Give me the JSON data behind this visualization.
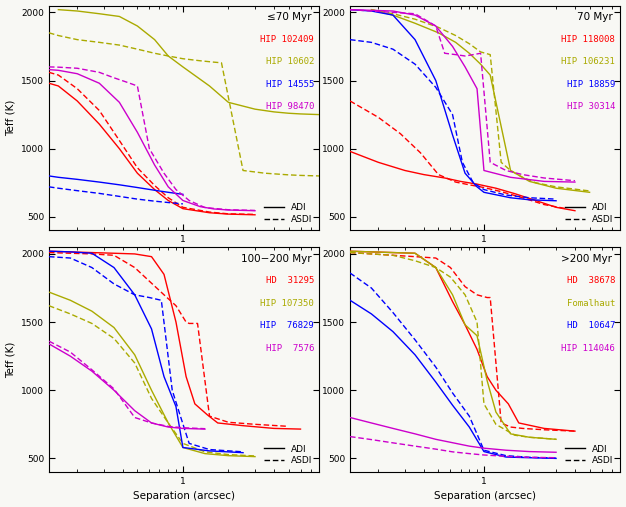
{
  "panels": [
    {
      "title": "≤70 Myr",
      "xlim": [
        0.13,
        8.0
      ],
      "ylim": [
        400,
        2050
      ],
      "yticks": [
        500,
        1000,
        1500,
        2000
      ],
      "series": [
        {
          "label": "HIP 102409",
          "color": "#ff0000",
          "adi_x": [
            0.13,
            0.15,
            0.2,
            0.28,
            0.38,
            0.5,
            0.65,
            0.8,
            1.0,
            1.5,
            2.0,
            3.0
          ],
          "adi_y": [
            1480,
            1460,
            1350,
            1180,
            1000,
            820,
            700,
            620,
            560,
            530,
            520,
            515
          ],
          "asdi_x": [
            0.13,
            0.15,
            0.2,
            0.28,
            0.38,
            0.5,
            0.65,
            0.8,
            1.0,
            1.5,
            2.0,
            3.0
          ],
          "asdi_y": [
            1560,
            1540,
            1440,
            1280,
            1060,
            860,
            730,
            640,
            570,
            535,
            522,
            518
          ]
        },
        {
          "label": "HIP 10602",
          "color": "#aaaa00",
          "adi_x": [
            0.15,
            0.2,
            0.28,
            0.38,
            0.5,
            0.65,
            0.8,
            1.0,
            1.5,
            2.0,
            3.0,
            4.0,
            5.0,
            6.0,
            8.0
          ],
          "adi_y": [
            2020,
            2010,
            1990,
            1970,
            1900,
            1800,
            1680,
            1600,
            1460,
            1340,
            1290,
            1270,
            1260,
            1255,
            1250
          ],
          "asdi_x": [
            0.13,
            0.15,
            0.2,
            0.28,
            0.38,
            0.5,
            0.65,
            0.8,
            1.0,
            1.3,
            1.6,
            1.8,
            2.5,
            3.5,
            5.0,
            6.0,
            8.0
          ],
          "asdi_y": [
            1850,
            1830,
            1800,
            1780,
            1760,
            1730,
            1700,
            1680,
            1660,
            1645,
            1635,
            1630,
            840,
            820,
            808,
            804,
            800
          ]
        },
        {
          "label": "HIP 14555",
          "color": "#0000ff",
          "adi_x": [
            0.13,
            0.15,
            0.2,
            0.28,
            0.38,
            0.5,
            0.65,
            0.8,
            1.0
          ],
          "adi_y": [
            800,
            790,
            775,
            755,
            735,
            715,
            695,
            680,
            665
          ],
          "asdi_x": [
            0.13,
            0.15,
            0.2,
            0.28,
            0.38,
            0.5,
            0.65,
            0.8,
            1.0
          ],
          "asdi_y": [
            720,
            710,
            692,
            672,
            650,
            630,
            615,
            605,
            595
          ]
        },
        {
          "label": "HIP 98470",
          "color": "#cc00cc",
          "adi_x": [
            0.13,
            0.15,
            0.2,
            0.28,
            0.38,
            0.5,
            0.65,
            0.8,
            1.0,
            1.3,
            1.6,
            2.0,
            3.0
          ],
          "adi_y": [
            1580,
            1575,
            1550,
            1480,
            1340,
            1120,
            880,
            720,
            620,
            575,
            558,
            550,
            545
          ],
          "asdi_x": [
            0.13,
            0.15,
            0.2,
            0.28,
            0.35,
            0.42,
            0.5,
            0.6,
            0.75,
            0.9,
            1.1,
            1.4,
            2.0,
            3.0
          ],
          "asdi_y": [
            1600,
            1598,
            1590,
            1560,
            1520,
            1490,
            1460,
            1000,
            820,
            700,
            620,
            568,
            552,
            547
          ]
        }
      ]
    },
    {
      "title": "70 Myr",
      "xlim": [
        0.13,
        8.0
      ],
      "ylim": [
        400,
        2050
      ],
      "yticks": [
        500,
        1000,
        1500,
        2000
      ],
      "series": [
        {
          "label": "HIP 118008",
          "color": "#ff0000",
          "adi_x": [
            0.13,
            0.2,
            0.3,
            0.4,
            0.55,
            0.7,
            0.9,
            1.2,
            1.6,
            2.2,
            3.0,
            4.0
          ],
          "adi_y": [
            980,
            900,
            840,
            810,
            785,
            760,
            740,
            710,
            670,
            620,
            570,
            545
          ],
          "asdi_x": [
            0.13,
            0.2,
            0.28,
            0.38,
            0.5,
            0.65,
            0.8,
            1.0,
            1.3,
            1.8,
            2.5,
            3.5
          ],
          "asdi_y": [
            1350,
            1230,
            1110,
            970,
            810,
            755,
            735,
            715,
            685,
            640,
            590,
            560
          ]
        },
        {
          "label": "HIP 106231",
          "color": "#aaaa00",
          "adi_x": [
            0.18,
            0.25,
            0.35,
            0.5,
            0.65,
            0.8,
            0.95,
            1.1,
            1.5,
            2.0,
            3.0,
            5.0
          ],
          "adi_y": [
            2020,
            1980,
            1920,
            1850,
            1780,
            1700,
            1620,
            1540,
            840,
            760,
            710,
            680
          ],
          "asdi_x": [
            0.18,
            0.25,
            0.35,
            0.5,
            0.65,
            0.8,
            0.95,
            1.1,
            1.3,
            1.5,
            1.8,
            2.2,
            3.0,
            5.0
          ],
          "asdi_y": [
            2020,
            1990,
            1950,
            1890,
            1830,
            1770,
            1710,
            1690,
            900,
            840,
            790,
            750,
            720,
            690
          ]
        },
        {
          "label": "HIP 18859",
          "color": "#0000ff",
          "adi_x": [
            0.13,
            0.18,
            0.25,
            0.35,
            0.48,
            0.62,
            0.75,
            0.9,
            1.0,
            1.5,
            2.0,
            3.0
          ],
          "adi_y": [
            2020,
            2010,
            1980,
            1800,
            1500,
            1100,
            820,
            720,
            680,
            640,
            625,
            618
          ],
          "asdi_x": [
            0.13,
            0.18,
            0.25,
            0.35,
            0.48,
            0.62,
            0.72,
            0.85,
            1.0,
            1.4,
            2.0,
            3.0
          ],
          "asdi_y": [
            1800,
            1780,
            1730,
            1620,
            1450,
            1250,
            900,
            750,
            700,
            660,
            640,
            630
          ]
        },
        {
          "label": "HIP 30314",
          "color": "#cc00cc",
          "adi_x": [
            0.13,
            0.18,
            0.25,
            0.35,
            0.48,
            0.62,
            0.75,
            0.9,
            1.0,
            1.5,
            2.5,
            4.0
          ],
          "adi_y": [
            2020,
            2015,
            2010,
            1980,
            1900,
            1750,
            1600,
            1440,
            840,
            790,
            760,
            755
          ],
          "asdi_x": [
            0.13,
            0.18,
            0.25,
            0.35,
            0.48,
            0.55,
            0.65,
            0.75,
            0.85,
            0.95,
            1.1,
            1.4,
            1.8,
            2.5,
            4.0
          ],
          "asdi_y": [
            2020,
            2010,
            2000,
            1990,
            1900,
            1700,
            1690,
            1680,
            1690,
            1700,
            900,
            840,
            810,
            785,
            765
          ]
        }
      ]
    },
    {
      "title": "100−200 Myr",
      "xlim": [
        0.13,
        8.0
      ],
      "ylim": [
        400,
        2050
      ],
      "yticks": [
        500,
        1000,
        1500,
        2000
      ],
      "series": [
        {
          "label": "HD  31295",
          "color": "#ff0000",
          "adi_x": [
            0.13,
            0.18,
            0.25,
            0.35,
            0.48,
            0.62,
            0.75,
            0.9,
            1.05,
            1.2,
            1.45,
            1.7,
            2.5,
            4.0,
            6.0
          ],
          "adi_y": [
            2020,
            2015,
            2010,
            2005,
            2000,
            1980,
            1850,
            1500,
            1100,
            900,
            820,
            760,
            740,
            720,
            715
          ],
          "asdi_x": [
            0.13,
            0.18,
            0.25,
            0.35,
            0.48,
            0.6,
            0.75,
            0.9,
            1.05,
            1.1,
            1.25,
            1.5,
            2.0,
            3.0,
            5.0
          ],
          "asdi_y": [
            2010,
            2005,
            2000,
            1990,
            1900,
            1800,
            1700,
            1620,
            1500,
            1490,
            1490,
            810,
            765,
            750,
            735
          ]
        },
        {
          "label": "HIP 107350",
          "color": "#aaaa00",
          "adi_x": [
            0.13,
            0.18,
            0.25,
            0.35,
            0.48,
            0.62,
            0.8,
            1.0,
            1.4,
            2.0,
            3.0
          ],
          "adi_y": [
            1720,
            1660,
            1580,
            1460,
            1260,
            1000,
            760,
            580,
            535,
            520,
            513
          ],
          "asdi_x": [
            0.13,
            0.18,
            0.25,
            0.35,
            0.48,
            0.62,
            0.8,
            1.0,
            1.4,
            2.0,
            3.0
          ],
          "asdi_y": [
            1620,
            1560,
            1490,
            1380,
            1200,
            940,
            760,
            610,
            548,
            528,
            518
          ]
        },
        {
          "label": "HIP  76829",
          "color": "#0000ff",
          "adi_x": [
            0.13,
            0.18,
            0.25,
            0.35,
            0.48,
            0.62,
            0.75,
            0.9,
            1.0,
            1.5,
            2.5
          ],
          "adi_y": [
            2020,
            2015,
            2005,
            1900,
            1700,
            1450,
            1100,
            880,
            580,
            555,
            542
          ],
          "asdi_x": [
            0.13,
            0.18,
            0.25,
            0.35,
            0.48,
            0.6,
            0.72,
            0.85,
            0.95,
            1.1,
            1.5,
            2.5
          ],
          "asdi_y": [
            1980,
            1970,
            1900,
            1780,
            1700,
            1680,
            1660,
            1000,
            830,
            610,
            565,
            548
          ]
        },
        {
          "label": "HIP  7576",
          "color": "#cc00cc",
          "adi_x": [
            0.13,
            0.18,
            0.25,
            0.35,
            0.48,
            0.62,
            0.8,
            1.0,
            1.4
          ],
          "adi_y": [
            1340,
            1250,
            1140,
            1000,
            850,
            760,
            730,
            720,
            715
          ],
          "asdi_x": [
            0.13,
            0.18,
            0.25,
            0.35,
            0.48,
            0.62,
            0.8,
            1.0,
            1.4
          ],
          "asdi_y": [
            1360,
            1280,
            1150,
            1010,
            800,
            760,
            735,
            725,
            718
          ]
        }
      ]
    },
    {
      "title": ">200 Myr",
      "xlim": [
        0.13,
        8.0
      ],
      "ylim": [
        400,
        2050
      ],
      "yticks": [
        500,
        1000,
        1500,
        2000
      ],
      "series": [
        {
          "label": "HD  38678",
          "color": "#ff0000",
          "adi_x": [
            0.13,
            0.18,
            0.25,
            0.35,
            0.48,
            0.62,
            0.75,
            0.9,
            1.05,
            1.2,
            1.45,
            1.7,
            2.5,
            4.0
          ],
          "adi_y": [
            2020,
            2015,
            2010,
            2005,
            1900,
            1650,
            1480,
            1300,
            1100,
            1000,
            900,
            760,
            720,
            700
          ],
          "asdi_x": [
            0.13,
            0.18,
            0.25,
            0.35,
            0.48,
            0.6,
            0.75,
            0.9,
            1.05,
            1.1,
            1.3,
            1.5,
            1.8,
            2.5,
            4.0
          ],
          "asdi_y": [
            2010,
            2000,
            1990,
            1980,
            1970,
            1900,
            1760,
            1700,
            1680,
            1680,
            760,
            730,
            720,
            710,
            700
          ]
        },
        {
          "label": "Fomalhaut",
          "color": "#aaaa00",
          "adi_x": [
            0.13,
            0.18,
            0.25,
            0.35,
            0.48,
            0.62,
            0.75,
            0.9,
            1.05,
            1.2,
            1.5,
            2.0,
            3.0
          ],
          "adi_y": [
            2020,
            2015,
            2010,
            2005,
            1900,
            1700,
            1480,
            1400,
            1070,
            840,
            680,
            655,
            640
          ],
          "asdi_x": [
            0.13,
            0.18,
            0.25,
            0.35,
            0.48,
            0.6,
            0.75,
            0.9,
            1.0,
            1.2,
            1.6,
            2.0,
            3.0
          ],
          "asdi_y": [
            2010,
            2000,
            1990,
            1950,
            1900,
            1830,
            1700,
            1500,
            900,
            750,
            670,
            655,
            640
          ]
        },
        {
          "label": "HD  10647",
          "color": "#0000ff",
          "adi_x": [
            0.13,
            0.18,
            0.25,
            0.35,
            0.48,
            0.62,
            0.8,
            1.0,
            1.4,
            2.0,
            3.0
          ],
          "adi_y": [
            1660,
            1560,
            1430,
            1260,
            1060,
            890,
            730,
            550,
            510,
            505,
            500
          ],
          "asdi_x": [
            0.13,
            0.18,
            0.25,
            0.35,
            0.48,
            0.62,
            0.8,
            1.0,
            1.4,
            2.0,
            3.0
          ],
          "asdi_y": [
            1860,
            1750,
            1570,
            1370,
            1170,
            980,
            810,
            560,
            520,
            508,
            502
          ]
        },
        {
          "label": "HIP 114046",
          "color": "#cc00cc",
          "adi_x": [
            0.13,
            0.18,
            0.25,
            0.35,
            0.48,
            0.62,
            0.8,
            1.0,
            1.4,
            2.0,
            3.0
          ],
          "adi_y": [
            800,
            760,
            720,
            680,
            640,
            615,
            590,
            575,
            560,
            550,
            545
          ],
          "asdi_x": [
            0.13,
            0.18,
            0.25,
            0.35,
            0.48,
            0.62,
            0.8,
            1.0,
            1.4,
            2.0,
            3.0
          ],
          "asdi_y": [
            660,
            638,
            614,
            590,
            568,
            548,
            535,
            525,
            515,
            508,
            505
          ]
        }
      ]
    }
  ],
  "bg_color": "#f8f8f4",
  "linewidth": 1.0,
  "font_size_label": 7.5,
  "font_size_tick": 6.5,
  "font_size_legend": 6.5,
  "font_size_title": 7.5
}
